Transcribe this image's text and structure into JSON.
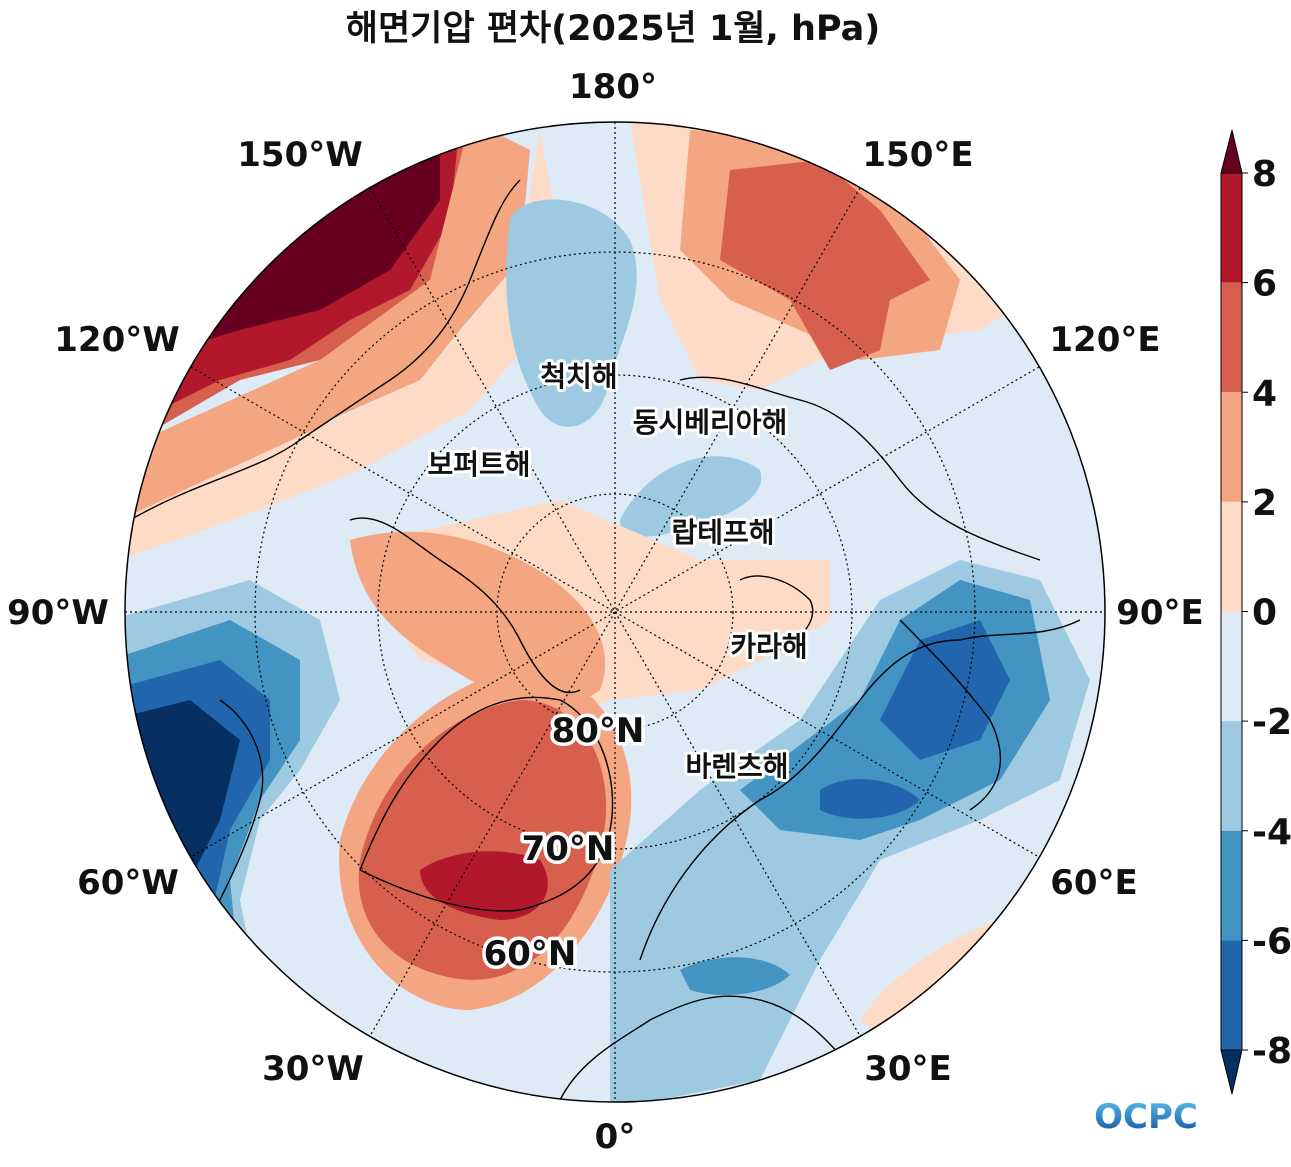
{
  "title": "해면기압 편차(2025년 1월, hPa)",
  "longitude_labels": [
    "180°",
    "150°E",
    "120°E",
    "90°E",
    "60°E",
    "30°E",
    "0°",
    "30°W",
    "60°W",
    "90°W",
    "120°W",
    "150°W"
  ],
  "latitude_labels": [
    "80°N",
    "70°N",
    "60°N"
  ],
  "sea_labels": [
    "척치해",
    "동시베리아해",
    "보퍼트해",
    "랍테프해",
    "카라해",
    "바렌츠해"
  ],
  "colorbar": {
    "ticks": [
      "8",
      "6",
      "4",
      "2",
      "0",
      "-2",
      "-4",
      "-6",
      "-8"
    ],
    "colors": [
      "#67001f",
      "#b2182b",
      "#d6604d",
      "#f4a582",
      "#fddbc7",
      "#deebf7",
      "#9ecae1",
      "#4393c3",
      "#2166ac",
      "#053061"
    ],
    "extend": "both"
  },
  "projection": "north-polar-stereographic",
  "logo": "OCPC",
  "colors": {
    "coastline": "#000000",
    "grid": "#000000",
    "logo_top": "#4fb3e8",
    "logo_bottom": "#0a5aa8"
  }
}
